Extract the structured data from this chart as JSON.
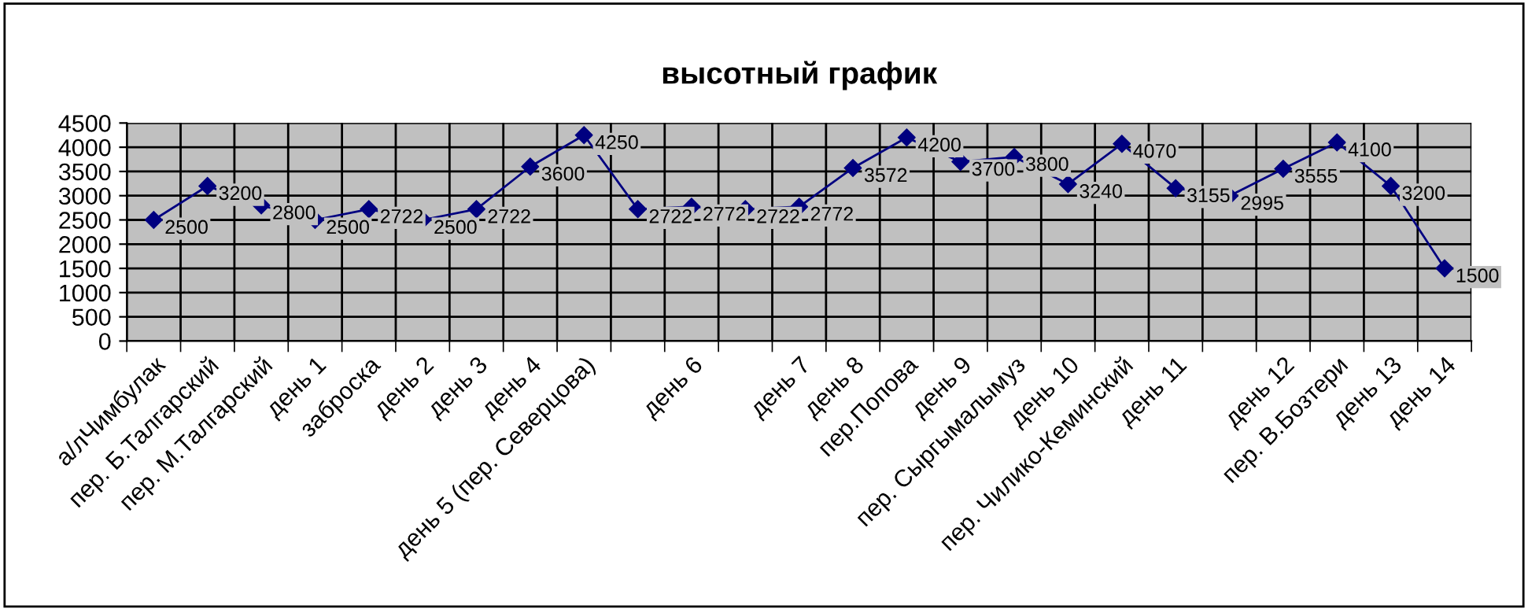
{
  "chart_data": {
    "type": "line",
    "title": "высотный график",
    "categories": [
      "а/лЧимбулак",
      "пер. Б.Талгарский",
      "пер. М.Талгарский",
      "день 1",
      "заброска",
      "день 2",
      "день 3",
      "день 4",
      "день 5 (пер. Северцова)",
      null,
      "день 6",
      null,
      "день 7",
      "день 8",
      "пер.Попова",
      "день 9",
      "пер. Сыргымалымуз",
      "день 10",
      "пер. Чилико-Кеминский",
      "день 11",
      null,
      "день 12",
      "пер. В.Бозтери",
      "день 13",
      "день 14"
    ],
    "series": [
      {
        "color": "#000080",
        "values": [
          2500,
          3200,
          2800,
          2500,
          2722,
          2500,
          2722,
          3600,
          4250,
          2722,
          2772,
          2722,
          2772,
          3572,
          4200,
          3700,
          3800,
          3240,
          4070,
          3155,
          2995,
          3555,
          4100,
          3200,
          1500
        ]
      }
    ],
    "ylim": [
      0,
      4500
    ],
    "yticks": [
      0,
      500,
      1000,
      1500,
      2000,
      2500,
      3000,
      3500,
      4000,
      4500
    ],
    "grid": true,
    "marker": "diamond",
    "line_style": "solid",
    "data_labels": true,
    "legend": false
  }
}
